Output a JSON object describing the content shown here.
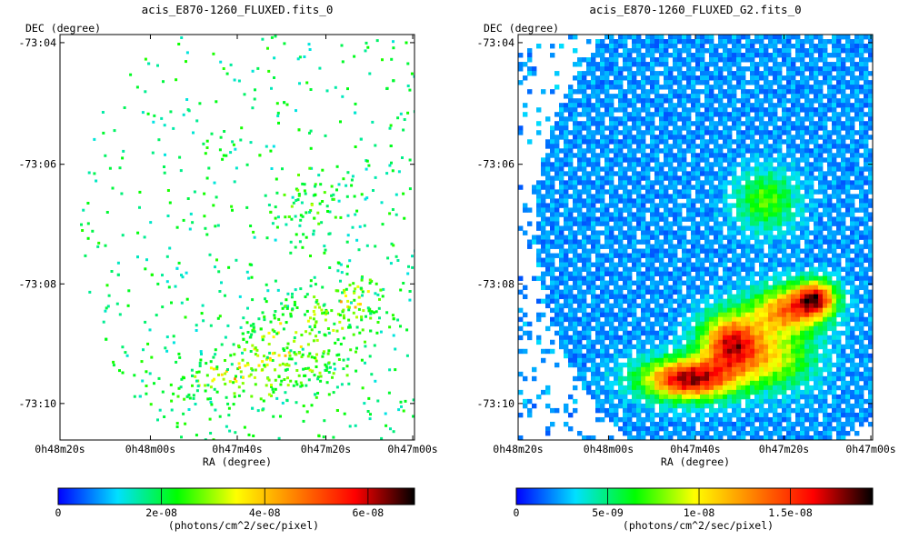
{
  "chart_data": [
    {
      "type": "heatmap",
      "title": "acis_E870-1260_FLUXED.fits_0",
      "xlabel": "RA (degree)",
      "ylabel": "DEC (degree)",
      "x_ticks": [
        "0h48m20s",
        "0h48m00s",
        "0h47m40s",
        "0h47m20s",
        "0h47m00s"
      ],
      "y_ticks": [
        "-73:04",
        "-73:06",
        "-73:08",
        "-73:10"
      ],
      "colorbar": {
        "label": "(photons/cm^2/sec/pixel)",
        "ticks": [
          "0",
          "2e-08",
          "4e-08",
          "6e-08"
        ],
        "tick_values": [
          0,
          2e-08,
          4e-08,
          6e-08
        ],
        "range": [
          0,
          6.9e-08
        ]
      },
      "colormap": [
        "#0000ff",
        "#00e0ff",
        "#00ff00",
        "#ffff00",
        "#ff8000",
        "#ff0000",
        "#000000"
      ],
      "style": "sparse-events"
    },
    {
      "type": "heatmap",
      "title": "acis_E870-1260_FLUXED_G2.fits_0",
      "xlabel": "RA (degree)",
      "ylabel": "DEC (degree)",
      "x_ticks": [
        "0h48m20s",
        "0h48m00s",
        "0h47m40s",
        "0h47m20s",
        "0h47m00s"
      ],
      "y_ticks": [
        "-73:04",
        "-73:06",
        "-73:08",
        "-73:10"
      ],
      "colorbar": {
        "label": "(photons/cm^2/sec/pixel)",
        "ticks": [
          "0",
          "5e-09",
          "1e-08",
          "1.5e-08"
        ],
        "tick_values": [
          0,
          5e-09,
          1e-08,
          1.5e-08
        ],
        "range": [
          0,
          1.95e-08
        ]
      },
      "colormap": [
        "#0000ff",
        "#00e0ff",
        "#00ff00",
        "#ffff00",
        "#ff8000",
        "#ff0000",
        "#000000"
      ],
      "style": "smoothed"
    }
  ]
}
